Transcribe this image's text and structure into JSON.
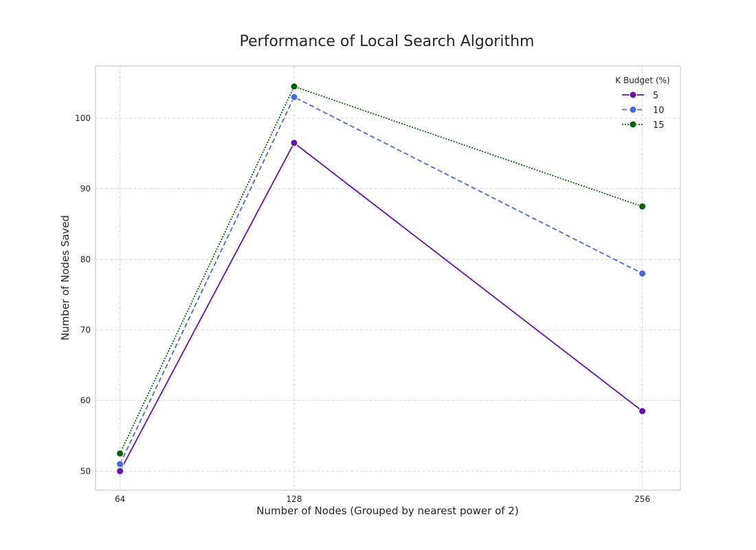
{
  "chart_data": {
    "type": "line",
    "title": "Performance of Local Search Algorithm",
    "xlabel": "Number of Nodes (Grouped by nearest power of 2)",
    "ylabel": "Number of Nodes Saved",
    "x": [
      64,
      128,
      256
    ],
    "x_tick_labels": [
      "64",
      "128",
      "256"
    ],
    "y_ticks": [
      50,
      60,
      70,
      80,
      90,
      100
    ],
    "y_tick_labels": [
      "50",
      "60",
      "70",
      "80",
      "90",
      "100"
    ],
    "xlim": [
      55,
      270
    ],
    "ylim": [
      47.3,
      107.4
    ],
    "grid": true,
    "legend": {
      "title": "K Budget (%)",
      "placement": "top-right"
    },
    "series": [
      {
        "name": "5",
        "values": [
          50.0,
          96.5,
          58.5
        ],
        "color": "#6a0dad",
        "line_style": "solid"
      },
      {
        "name": "10",
        "values": [
          51.0,
          103.0,
          78.0
        ],
        "color": "#4169e1",
        "line_style": "dashed"
      },
      {
        "name": "15",
        "values": [
          52.5,
          104.5,
          87.5
        ],
        "color": "#006400",
        "line_style": "dotted"
      }
    ]
  }
}
